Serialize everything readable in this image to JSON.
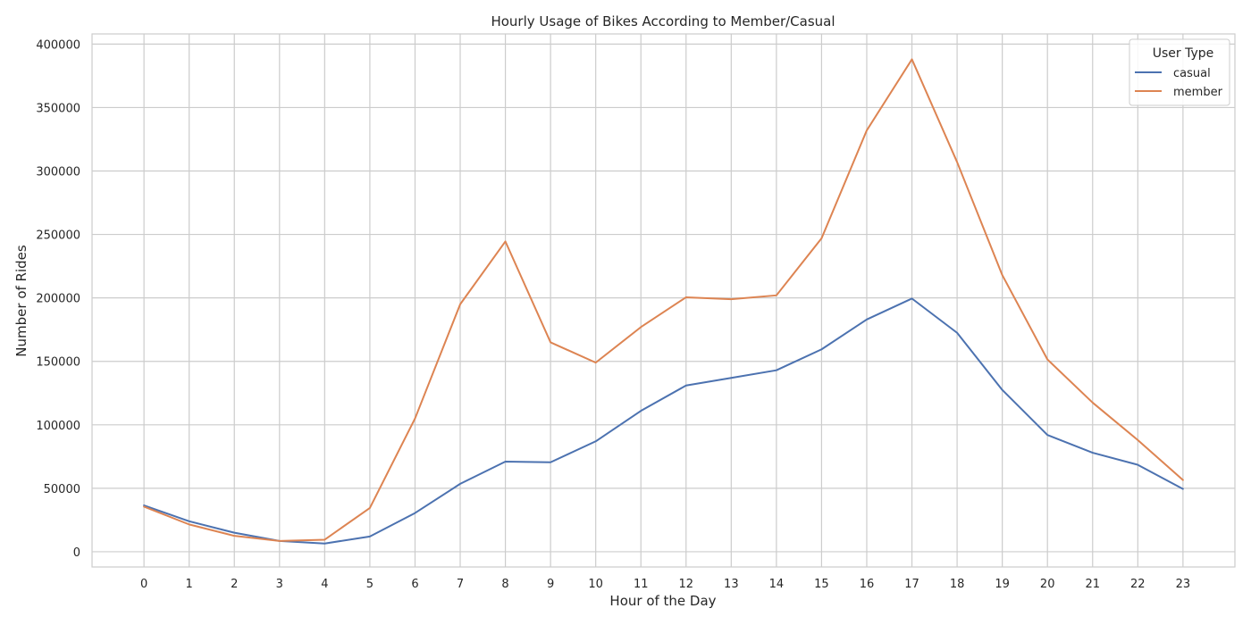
{
  "chart_data": {
    "type": "line",
    "title": "Hourly Usage of Bikes According to Member/Casual",
    "xlabel": "Hour of the Day",
    "ylabel": "Number of Rides",
    "x": [
      0,
      1,
      2,
      3,
      4,
      5,
      6,
      7,
      8,
      9,
      10,
      11,
      12,
      13,
      14,
      15,
      16,
      17,
      18,
      19,
      20,
      21,
      22,
      23
    ],
    "xticks": [
      "0",
      "1",
      "2",
      "3",
      "4",
      "5",
      "6",
      "7",
      "8",
      "9",
      "10",
      "11",
      "12",
      "13",
      "14",
      "15",
      "16",
      "17",
      "18",
      "19",
      "20",
      "21",
      "22",
      "23"
    ],
    "yticks": [
      0,
      50000,
      100000,
      150000,
      200000,
      250000,
      300000,
      350000,
      400000
    ],
    "ytick_labels": [
      "0",
      "50000",
      "100000",
      "150000",
      "200000",
      "250000",
      "300000",
      "350000",
      "400000"
    ],
    "xlim": [
      -1.15,
      24.15
    ],
    "ylim": [
      -12000,
      408000
    ],
    "grid": true,
    "legend": {
      "title": "User Type",
      "position": "top-right"
    },
    "series": [
      {
        "name": "casual",
        "color": "#4c72b0",
        "values": [
          36500,
          24000,
          15000,
          8500,
          6500,
          12000,
          30500,
          53500,
          71000,
          70500,
          87000,
          111000,
          131000,
          137000,
          143000,
          159500,
          183000,
          199500,
          172500,
          127500,
          92000,
          78000,
          68500,
          49500
        ]
      },
      {
        "name": "member",
        "color": "#dd8452",
        "values": [
          35500,
          21500,
          12500,
          8500,
          9500,
          34500,
          105000,
          195000,
          244500,
          165000,
          149000,
          177000,
          200500,
          199000,
          202000,
          247000,
          332000,
          388000,
          307000,
          218000,
          151500,
          117500,
          88000,
          56500
        ]
      }
    ]
  }
}
